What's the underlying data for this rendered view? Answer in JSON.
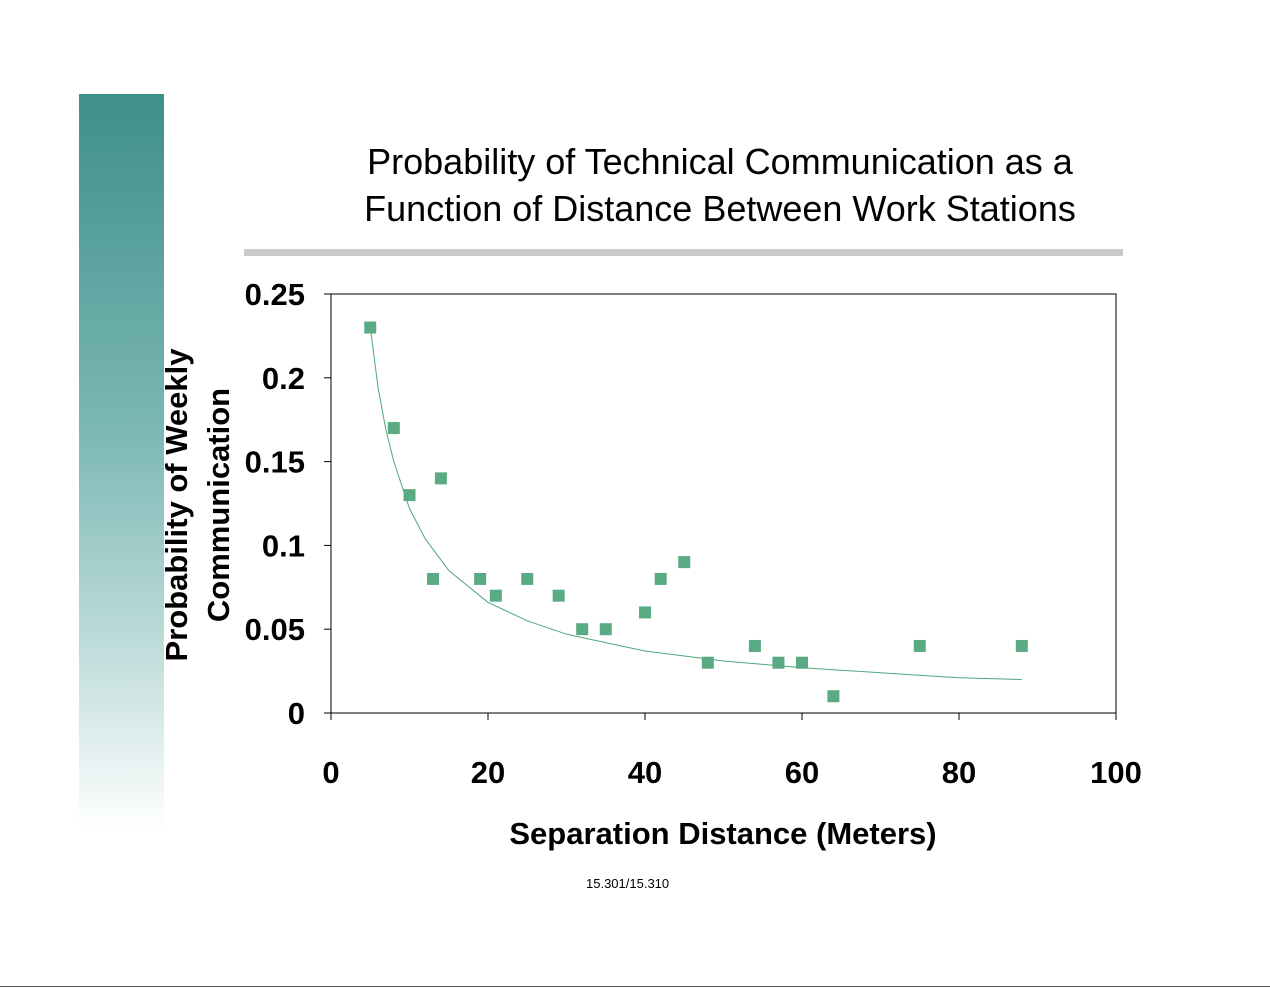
{
  "slide": {
    "title_line1": "Probability of Technical Communication as a",
    "title_line2": "Function of Distance Between Work Stations",
    "footer": "15.301/15.310"
  },
  "colors": {
    "sidebar_top": "#3f8f8b",
    "rule": "#c9c9c9",
    "marker": "#5aaa84",
    "curve": "#4fa77c"
  },
  "chart_data": {
    "type": "scatter",
    "xlabel": "Separation Distance  (Meters)",
    "ylabel_line1": "Probability of Weekly",
    "ylabel_line2": "Communication",
    "xlim": [
      0,
      100
    ],
    "ylim": [
      0,
      0.25
    ],
    "xticks": [
      "0",
      "20",
      "40",
      "60",
      "80",
      "100"
    ],
    "yticks": [
      "0",
      "0.05",
      "0.1",
      "0.15",
      "0.2",
      "0.25"
    ],
    "grid": false,
    "legend": "none",
    "series": [
      {
        "points": [
          {
            "x": 5,
            "y": 0.23
          },
          {
            "x": 8,
            "y": 0.17
          },
          {
            "x": 10,
            "y": 0.13
          },
          {
            "x": 13,
            "y": 0.08
          },
          {
            "x": 14,
            "y": 0.14
          },
          {
            "x": 19,
            "y": 0.08
          },
          {
            "x": 21,
            "y": 0.07
          },
          {
            "x": 25,
            "y": 0.08
          },
          {
            "x": 29,
            "y": 0.07
          },
          {
            "x": 32,
            "y": 0.05
          },
          {
            "x": 35,
            "y": 0.05
          },
          {
            "x": 40,
            "y": 0.06
          },
          {
            "x": 42,
            "y": 0.08
          },
          {
            "x": 45,
            "y": 0.09
          },
          {
            "x": 48,
            "y": 0.03
          },
          {
            "x": 54,
            "y": 0.04
          },
          {
            "x": 57,
            "y": 0.03
          },
          {
            "x": 60,
            "y": 0.03
          },
          {
            "x": 64,
            "y": 0.01
          },
          {
            "x": 75,
            "y": 0.04
          },
          {
            "x": 88,
            "y": 0.04
          }
        ]
      }
    ],
    "trendline": {
      "type": "power",
      "points": [
        {
          "x": 5,
          "y": 0.23
        },
        {
          "x": 6,
          "y": 0.194
        },
        {
          "x": 7,
          "y": 0.169
        },
        {
          "x": 8,
          "y": 0.15
        },
        {
          "x": 10,
          "y": 0.122
        },
        {
          "x": 12,
          "y": 0.104
        },
        {
          "x": 15,
          "y": 0.085
        },
        {
          "x": 20,
          "y": 0.066
        },
        {
          "x": 25,
          "y": 0.055
        },
        {
          "x": 30,
          "y": 0.047
        },
        {
          "x": 40,
          "y": 0.037
        },
        {
          "x": 50,
          "y": 0.031
        },
        {
          "x": 60,
          "y": 0.027
        },
        {
          "x": 70,
          "y": 0.024
        },
        {
          "x": 80,
          "y": 0.021
        },
        {
          "x": 88,
          "y": 0.02
        }
      ]
    }
  }
}
